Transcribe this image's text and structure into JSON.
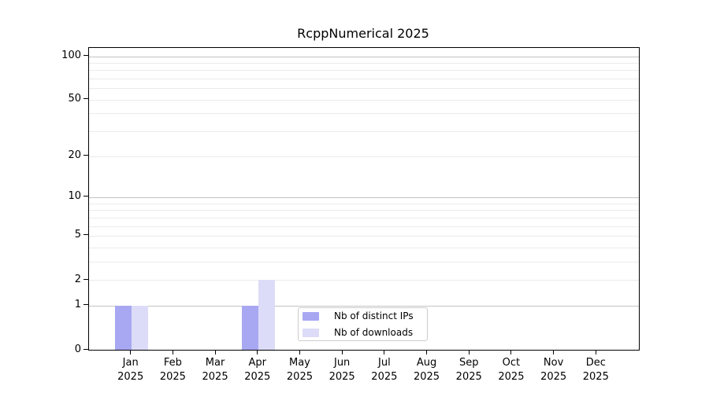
{
  "chart_data": {
    "type": "bar",
    "title": "RcppNumerical 2025",
    "categories": [
      "Jan",
      "Feb",
      "Mar",
      "Apr",
      "May",
      "Jun",
      "Jul",
      "Aug",
      "Sep",
      "Oct",
      "Nov",
      "Dec"
    ],
    "category_year_label": "2025",
    "series": [
      {
        "name": "Nb of distinct IPs",
        "color": "#a8a8f2",
        "values": [
          1,
          0,
          0,
          1,
          0,
          0,
          0,
          0,
          0,
          0,
          0,
          0
        ]
      },
      {
        "name": "Nb of downloads",
        "color": "#dcdcf8",
        "values": [
          1,
          0,
          0,
          2,
          0,
          0,
          0,
          0,
          0,
          0,
          0,
          0
        ]
      }
    ],
    "xlabel": "",
    "ylabel": "",
    "y_scale": "log1p",
    "ylim": [
      0,
      114
    ],
    "y_ticks": [
      0,
      1,
      2,
      5,
      10,
      20,
      50,
      100
    ],
    "y_major_gridlines": [
      1,
      10,
      100
    ],
    "y_minor_gridlines": [
      2,
      3,
      4,
      5,
      6,
      7,
      8,
      9,
      20,
      30,
      40,
      50,
      60,
      70,
      80,
      90,
      100
    ],
    "grid": true,
    "legend_position": "bottom-center",
    "colors": {
      "major_grid": "#c3c3c3",
      "minor_grid": "#ebebeb",
      "spine": "#000000",
      "legend_border": "#cccccc",
      "text": "#000000",
      "background": "#ffffff"
    }
  }
}
